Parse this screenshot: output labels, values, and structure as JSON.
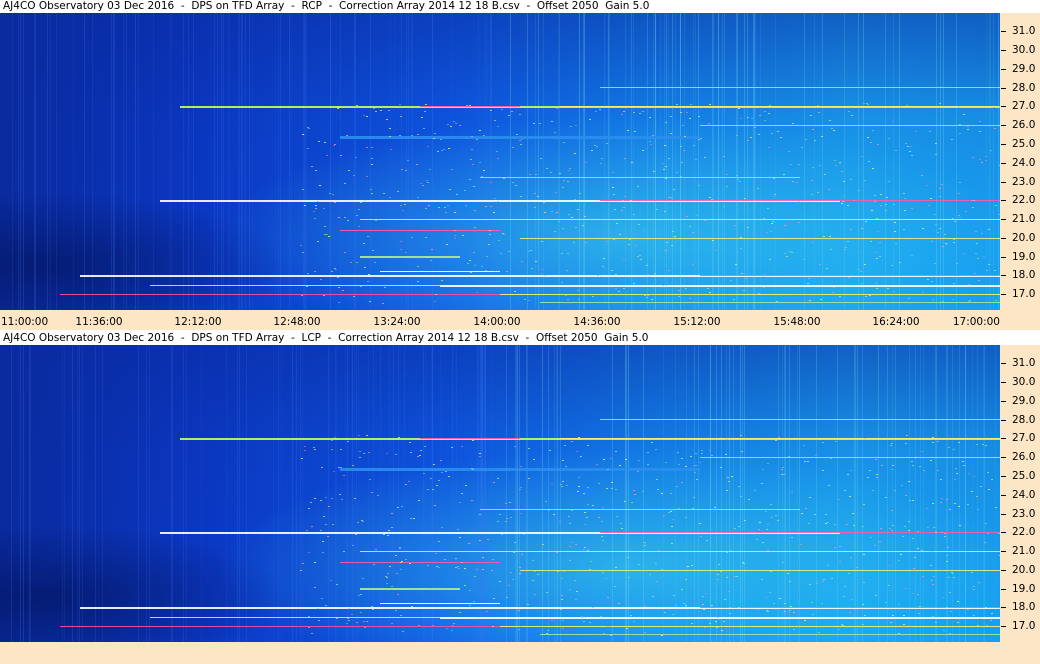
{
  "panels": [
    {
      "title": "AJ4CO Observatory 03 Dec 2016  -  DPS on TFD Array  -  RCP  -  Correction Array 2014 12 18 B.csv  -  Offset 2050  Gain 5.0",
      "freq_labels": [
        "31.0",
        "30.0",
        "29.0",
        "28.0",
        "27.0",
        "26.0",
        "25.0",
        "24.0",
        "23.0",
        "22.0",
        "21.0",
        "20.0",
        "19.0",
        "18.0",
        "17.0"
      ],
      "time_labels": [
        "11:00:00",
        "11:36:00",
        "12:12:00",
        "12:48:00",
        "13:24:00",
        "14:00:00",
        "14:36:00",
        "15:12:00",
        "15:48:00",
        "16:24:00",
        "17:00:00"
      ]
    },
    {
      "title": "AJ4CO Observatory 03 Dec 2016  -  DPS on TFD Array  -  LCP  -  Correction Array 2014 12 18 B.csv  -  Offset 2050  Gain 5.0",
      "freq_labels": [
        "31.0",
        "30.0",
        "29.0",
        "28.0",
        "27.0",
        "26.0",
        "25.0",
        "24.0",
        "23.0",
        "22.0",
        "21.0",
        "20.0",
        "19.0",
        "18.0",
        "17.0"
      ],
      "time_labels": []
    }
  ],
  "colors": {
    "axis_background": "#fde6c6",
    "spectrogram_base": "#0a3fd8"
  }
}
